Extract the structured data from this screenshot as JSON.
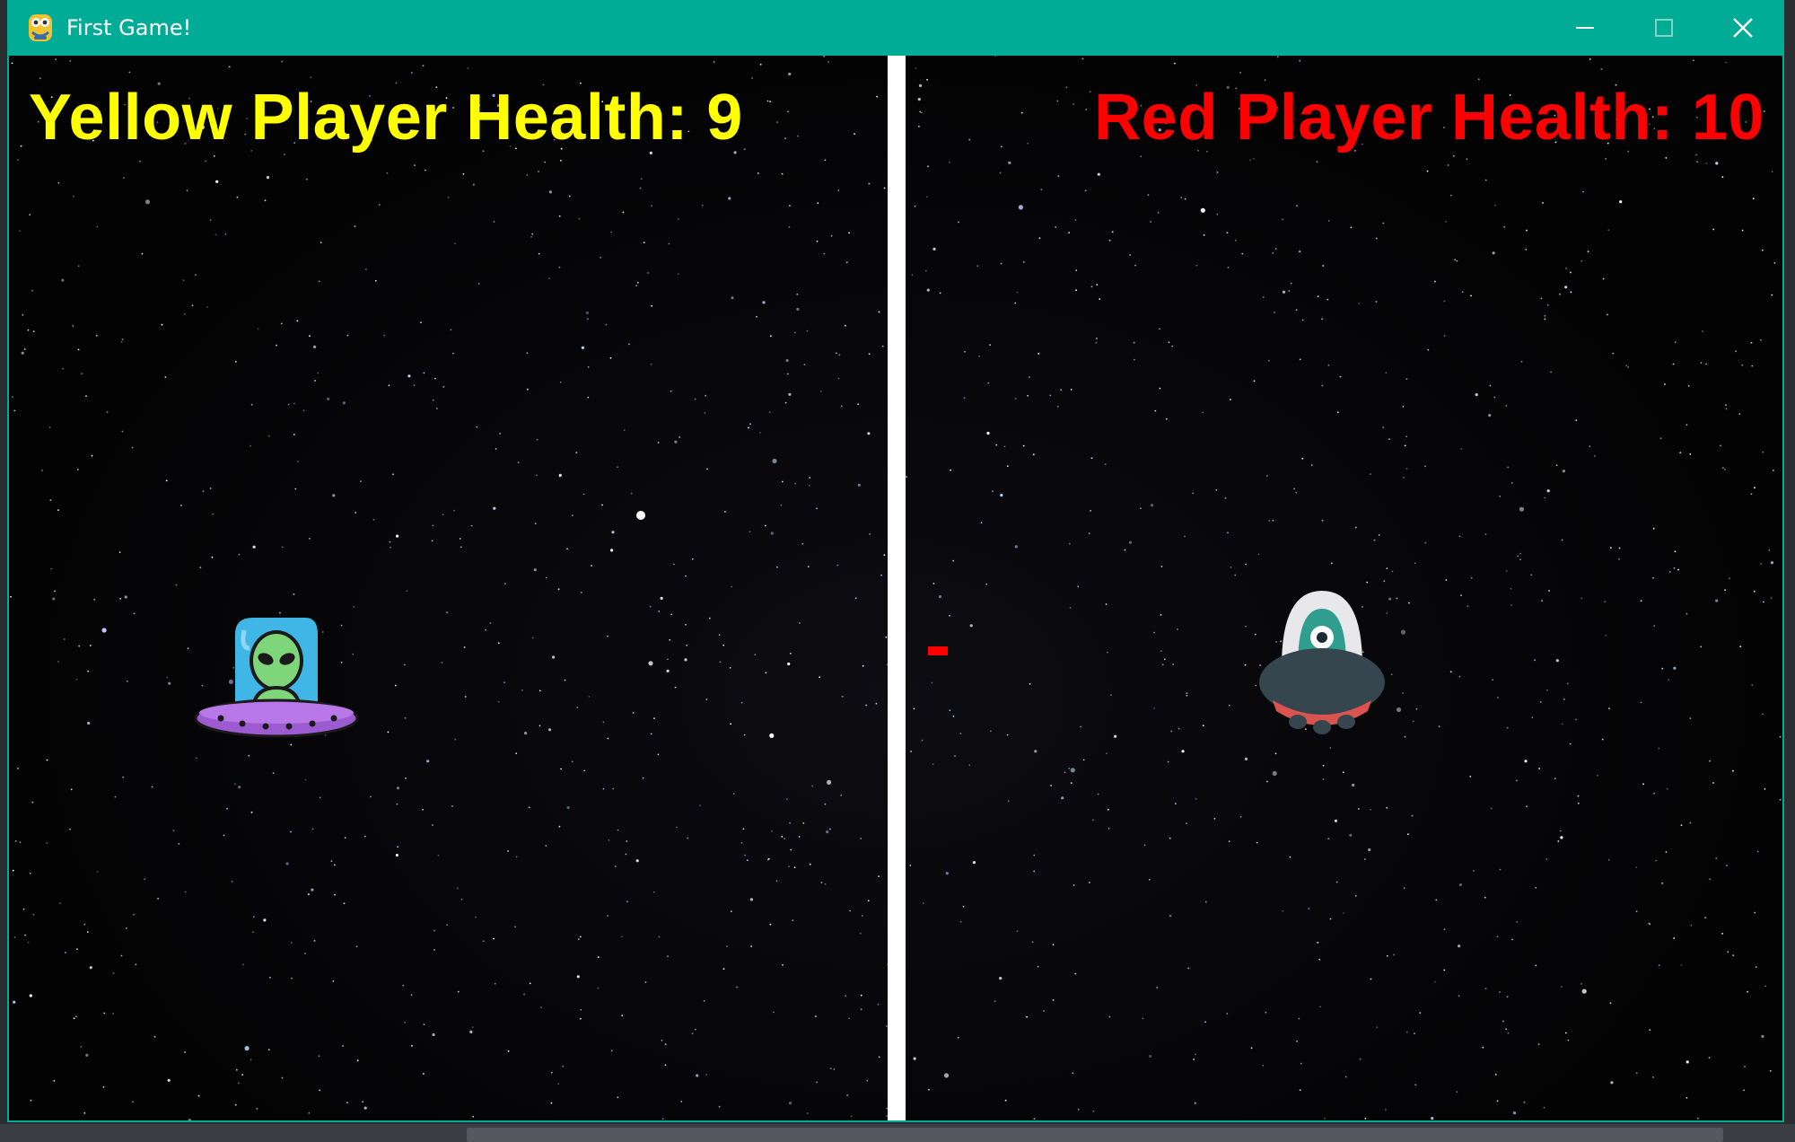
{
  "window": {
    "title": "First Game!",
    "icon": "python-snake-icon",
    "title_bar_color": "#00ac95"
  },
  "controls": {
    "minimize_icon": "minimize-icon",
    "maximize_icon": "maximize-icon",
    "close_icon": "close-icon"
  },
  "hud": {
    "yellow_health_label": "Yellow Player Health: 9",
    "yellow_color": "#ffff00",
    "red_health_label": "Red Player Health: 10",
    "red_color": "#ff0000"
  },
  "game": {
    "background": "starfield",
    "border_color": "#ffffff",
    "yellow_ship": "alien-ufo-icon",
    "red_ship": "ufo-ship-icon",
    "bullet_color": "#ff0000"
  }
}
